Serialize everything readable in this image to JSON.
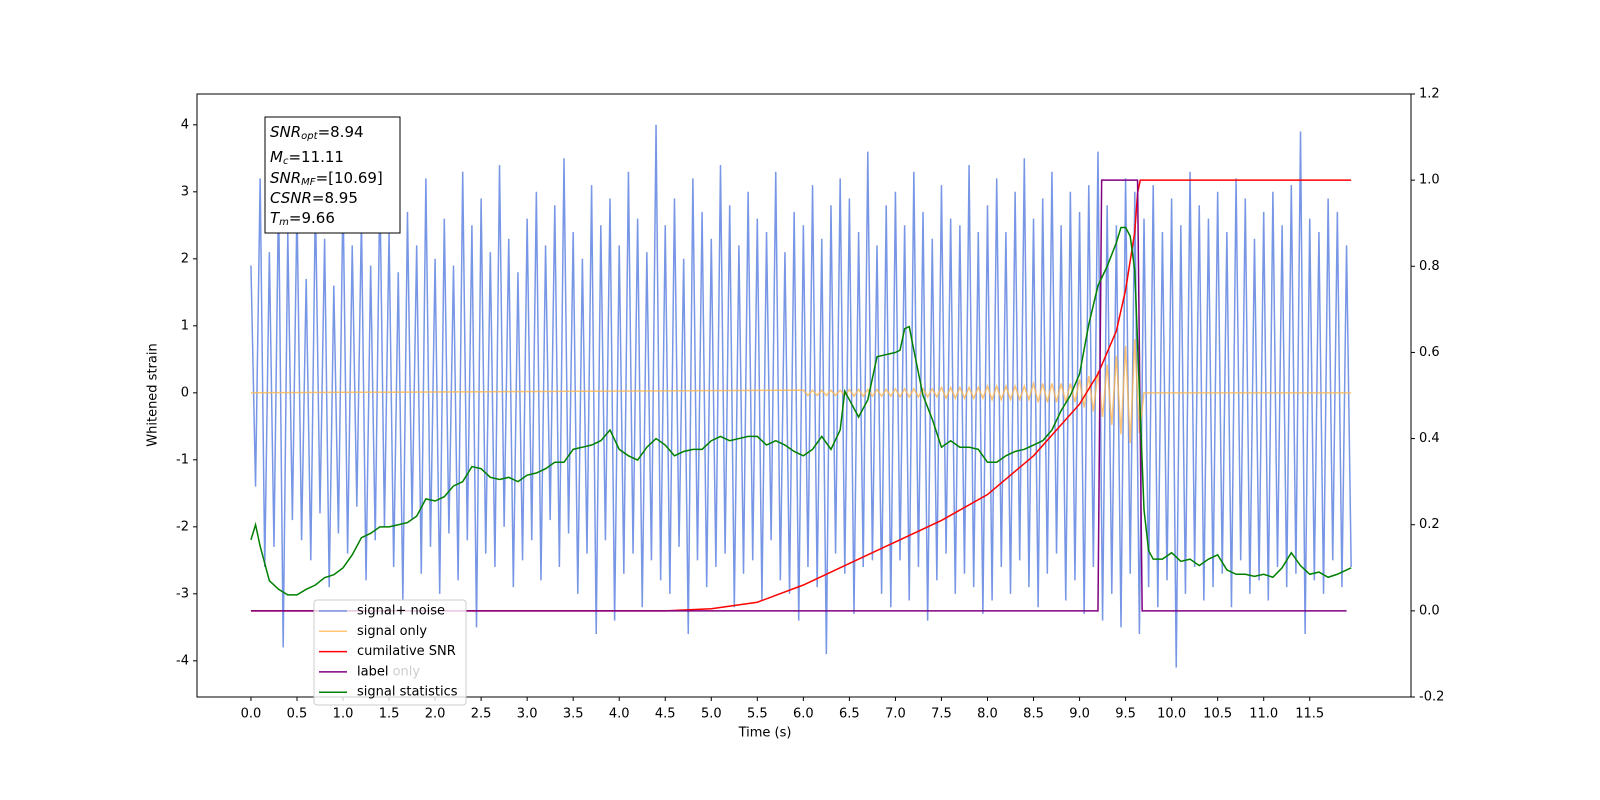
{
  "chart_data": {
    "type": "line",
    "xlabel": "Time (s)",
    "ylabel": "Whitened strain",
    "xlim": [
      -0.586,
      12.6
    ],
    "ylim": [
      -4.54,
      4.46
    ],
    "y2lim": [
      -0.2,
      1.2
    ],
    "xticks": [
      {
        "value": 0,
        "label": "0.0"
      },
      0.5,
      {
        "value": 1,
        "label": "1.0"
      },
      1.5,
      {
        "value": 2,
        "label": "2.0"
      },
      2.5,
      {
        "value": 3,
        "label": "3.0"
      },
      3.5,
      {
        "value": 4,
        "label": "4.0"
      },
      4.5,
      {
        "value": 5,
        "label": "5.0"
      },
      5.5,
      {
        "value": 6,
        "label": "6.0"
      },
      6.5,
      {
        "value": 7,
        "label": "7.0"
      },
      7.5,
      {
        "value": 8,
        "label": "8.0"
      },
      8.5,
      {
        "value": 9,
        "label": "9.0"
      },
      9.5,
      {
        "value": 10,
        "label": "10.0"
      },
      10.5,
      {
        "value": 11,
        "label": "11.0"
      },
      11.5
    ],
    "yticks": [
      -4,
      -3,
      -2,
      -1,
      0,
      1,
      2,
      3,
      4
    ],
    "y2ticks": [
      -0.2,
      {
        "value": 0,
        "label": "0.0"
      },
      0.2,
      0.4,
      0.6,
      0.8,
      {
        "value": 1,
        "label": "1.0"
      },
      1.2
    ],
    "annotations": [
      {
        "text": "SNR",
        "sub": "opt",
        "value": "=8.94"
      },
      {
        "text": "M",
        "sub": "c",
        "value": "=11.11"
      },
      {
        "text": "SNR",
        "sub": "MF",
        "value": "=[10.69]"
      },
      {
        "text": "CSNR",
        "value": "=8.95"
      },
      {
        "text": "T",
        "sub": "m",
        "value": "=9.66"
      }
    ],
    "overlapped_legend_entry": "label only",
    "series": [
      {
        "name": "signal+ noise",
        "color": "#7896e6",
        "axis": "y",
        "x": [
          0,
          0.05,
          0.1,
          0.15,
          0.2,
          0.25,
          0.3,
          0.35,
          0.4,
          0.45,
          0.5,
          0.55,
          0.6,
          0.65,
          0.7,
          0.75,
          0.8,
          0.85,
          0.9,
          0.95,
          1,
          1.05,
          1.1,
          1.15,
          1.2,
          1.25,
          1.3,
          1.35,
          1.4,
          1.45,
          1.5,
          1.55,
          1.6,
          1.65,
          1.7,
          1.75,
          1.8,
          1.85,
          1.9,
          1.95,
          2,
          2.05,
          2.1,
          2.15,
          2.2,
          2.25,
          2.3,
          2.35,
          2.4,
          2.45,
          2.5,
          2.55,
          2.6,
          2.65,
          2.7,
          2.75,
          2.8,
          2.85,
          2.9,
          2.95,
          3,
          3.05,
          3.1,
          3.15,
          3.2,
          3.25,
          3.3,
          3.35,
          3.4,
          3.45,
          3.5,
          3.55,
          3.6,
          3.65,
          3.7,
          3.75,
          3.8,
          3.85,
          3.9,
          3.95,
          4,
          4.05,
          4.1,
          4.15,
          4.2,
          4.25,
          4.3,
          4.35,
          4.4,
          4.45,
          4.5,
          4.55,
          4.6,
          4.65,
          4.7,
          4.75,
          4.8,
          4.85,
          4.9,
          4.95,
          5,
          5.05,
          5.1,
          5.15,
          5.2,
          5.25,
          5.3,
          5.35,
          5.4,
          5.45,
          5.5,
          5.55,
          5.6,
          5.65,
          5.7,
          5.75,
          5.8,
          5.85,
          5.9,
          5.95,
          6,
          6.05,
          6.1,
          6.15,
          6.2,
          6.25,
          6.3,
          6.35,
          6.4,
          6.45,
          6.5,
          6.55,
          6.6,
          6.65,
          6.7,
          6.75,
          6.8,
          6.85,
          6.9,
          6.95,
          7,
          7.05,
          7.1,
          7.15,
          7.2,
          7.25,
          7.3,
          7.35,
          7.4,
          7.45,
          7.5,
          7.55,
          7.6,
          7.65,
          7.7,
          7.75,
          7.8,
          7.85,
          7.9,
          7.95,
          8,
          8.05,
          8.1,
          8.15,
          8.2,
          8.25,
          8.3,
          8.35,
          8.4,
          8.45,
          8.5,
          8.55,
          8.6,
          8.65,
          8.7,
          8.75,
          8.8,
          8.85,
          8.9,
          8.95,
          9,
          9.05,
          9.1,
          9.15,
          9.2,
          9.25,
          9.3,
          9.35,
          9.4,
          9.45,
          9.5,
          9.55,
          9.6,
          9.65,
          9.7,
          9.75,
          9.8,
          9.85,
          9.9,
          9.95,
          10,
          10.05,
          10.1,
          10.15,
          10.2,
          10.25,
          10.3,
          10.35,
          10.4,
          10.45,
          10.5,
          10.55,
          10.6,
          10.65,
          10.7,
          10.75,
          10.8,
          10.85,
          10.9,
          10.95,
          11,
          11.05,
          11.1,
          11.15,
          11.2,
          11.25,
          11.3,
          11.35,
          11.4,
          11.45,
          11.5,
          11.55,
          11.6,
          11.65,
          11.7,
          11.75,
          11.8,
          11.85,
          11.9,
          11.95
        ],
        "values": [
          1.9,
          -1.4,
          3.2,
          -2.6,
          2.1,
          -2.3,
          3.0,
          -3.8,
          2.4,
          -1.9,
          2.8,
          -2.2,
          1.7,
          -2.5,
          2.9,
          -1.8,
          2.3,
          -2.9,
          1.6,
          -2.1,
          3.0,
          -2.4,
          2.2,
          -1.7,
          2.6,
          -2.8,
          1.9,
          -2.2,
          3.1,
          -2.0,
          2.4,
          -2.6,
          1.8,
          -3.1,
          2.7,
          -1.9,
          2.2,
          -2.7,
          3.2,
          -2.3,
          2.0,
          -3.0,
          2.6,
          -2.1,
          1.9,
          -2.8,
          3.3,
          -2.2,
          2.5,
          -3.5,
          2.9,
          -2.4,
          2.1,
          -2.6,
          3.4,
          -2.0,
          2.3,
          -2.9,
          1.8,
          -2.5,
          2.6,
          -2.2,
          3.0,
          -2.8,
          2.2,
          -1.9,
          2.8,
          -2.6,
          3.5,
          -2.1,
          2.4,
          -3.0,
          2.0,
          -2.4,
          3.1,
          -3.6,
          2.5,
          -2.2,
          2.9,
          -3.4,
          2.2,
          -2.7,
          3.3,
          -2.4,
          2.6,
          -3.2,
          2.1,
          -2.5,
          4.0,
          -2.8,
          2.5,
          -3.0,
          2.9,
          -2.3,
          2.0,
          -3.6,
          3.2,
          -2.5,
          2.7,
          -2.9,
          2.3,
          -2.6,
          3.4,
          -2.4,
          2.8,
          -3.2,
          2.2,
          -2.7,
          3.0,
          -2.5,
          2.6,
          -3.1,
          2.4,
          -2.2,
          3.3,
          -2.8,
          2.1,
          -3.0,
          2.7,
          -3.4,
          2.5,
          -2.6,
          3.1,
          -2.9,
          2.3,
          -3.9,
          2.8,
          -2.4,
          3.2,
          -2.7,
          2.9,
          -3.3,
          2.4,
          -2.6,
          3.6,
          -2.5,
          2.2,
          -3.0,
          2.8,
          -3.2,
          3.0,
          -2.5,
          2.5,
          -3.1,
          3.3,
          -2.6,
          2.7,
          -3.4,
          2.3,
          -2.8,
          3.1,
          -2.4,
          2.6,
          -3.0,
          2.5,
          -2.7,
          3.4,
          -2.9,
          2.4,
          -3.3,
          2.8,
          -3.1,
          3.2,
          -2.6,
          2.4,
          -3.0,
          3.0,
          -2.5,
          3.5,
          -2.9,
          2.6,
          -3.2,
          2.9,
          -2.7,
          3.3,
          -2.4,
          2.5,
          -3.1,
          3.0,
          -2.8,
          2.7,
          -3.3,
          3.1,
          -2.6,
          3.6,
          -3.4,
          2.8,
          -3.0,
          2.5,
          -3.5,
          3.2,
          -2.7,
          3.0,
          -3.6,
          2.6,
          -2.9,
          3.1,
          -3.2,
          2.4,
          -2.8,
          2.9,
          -4.1,
          2.5,
          -3.0,
          3.3,
          -2.6,
          2.8,
          -3.1,
          2.6,
          -2.9,
          3.0,
          -2.7,
          2.4,
          -3.2,
          3.2,
          -2.5,
          2.9,
          -3.0,
          2.3,
          -2.8,
          2.7,
          -3.1,
          3.0,
          -2.6,
          2.5,
          -2.9,
          3.1,
          -2.7,
          3.9,
          -3.6,
          2.6,
          -2.8,
          2.4,
          -3.0,
          2.9,
          -2.5,
          2.7,
          -2.9,
          2.2,
          -2.6
        ]
      },
      {
        "name": "signal only",
        "color": "#ffb347",
        "axis": "y",
        "x": [
          0,
          6,
          6.05,
          6.1,
          6.15,
          6.2,
          6.25,
          6.3,
          6.35,
          6.4,
          6.45,
          6.5,
          6.55,
          6.6,
          6.65,
          6.7,
          6.75,
          6.8,
          6.85,
          6.9,
          6.95,
          7,
          7.05,
          7.1,
          7.15,
          7.2,
          7.25,
          7.3,
          7.35,
          7.4,
          7.45,
          7.5,
          7.55,
          7.6,
          7.65,
          7.7,
          7.75,
          7.8,
          7.85,
          7.9,
          7.95,
          8,
          8.05,
          8.1,
          8.15,
          8.2,
          8.25,
          8.3,
          8.35,
          8.4,
          8.45,
          8.5,
          8.55,
          8.6,
          8.65,
          8.7,
          8.75,
          8.8,
          8.85,
          8.9,
          8.95,
          9,
          9.05,
          9.1,
          9.15,
          9.2,
          9.25,
          9.3,
          9.35,
          9.4,
          9.45,
          9.5,
          9.55,
          9.6,
          9.65,
          9.7,
          11.95
        ],
        "values": [
          0,
          0.04,
          -0.04,
          0.04,
          -0.04,
          0.04,
          -0.04,
          0.04,
          -0.04,
          0.04,
          -0.04,
          0.05,
          -0.05,
          0.05,
          -0.05,
          0.05,
          -0.05,
          0.05,
          -0.05,
          0.05,
          -0.05,
          0.06,
          -0.06,
          0.06,
          -0.06,
          0.06,
          -0.06,
          0.06,
          -0.06,
          0.06,
          -0.06,
          0.08,
          -0.08,
          0.08,
          -0.08,
          0.08,
          -0.08,
          0.08,
          -0.08,
          0.08,
          -0.08,
          0.1,
          -0.1,
          0.1,
          -0.1,
          0.1,
          -0.1,
          0.1,
          -0.1,
          0.1,
          -0.1,
          0.14,
          -0.14,
          0.14,
          -0.14,
          0.14,
          -0.14,
          0.14,
          -0.14,
          0.14,
          -0.14,
          0.2,
          -0.22,
          0.25,
          -0.28,
          0.32,
          -0.36,
          0.42,
          -0.48,
          0.55,
          -0.62,
          0.7,
          -0.75,
          0.8,
          -0.6,
          0,
          0
        ]
      },
      {
        "name": "cumilative SNR",
        "color": "#ff0000",
        "axis": "y2",
        "x": [
          0,
          4.5,
          5,
          5.5,
          6,
          6.5,
          7,
          7.5,
          8,
          8.5,
          9,
          9.2,
          9.4,
          9.5,
          9.6,
          9.63,
          9.66,
          11.95
        ],
        "values": [
          0,
          0,
          0.005,
          0.02,
          0.06,
          0.11,
          0.16,
          0.21,
          0.27,
          0.36,
          0.48,
          0.55,
          0.65,
          0.745,
          0.88,
          0.97,
          1,
          1
        ]
      },
      {
        "name": "label",
        "color": "#800080",
        "axis": "y2",
        "x": [
          0,
          9.2,
          9.24,
          9.63,
          9.68,
          11.9
        ],
        "values": [
          0,
          0,
          1,
          1,
          0,
          0
        ]
      },
      {
        "name": "signal statistics",
        "color": "#008000",
        "axis": "y2",
        "x": [
          0,
          0.05,
          0.1,
          0.2,
          0.3,
          0.4,
          0.5,
          0.6,
          0.7,
          0.8,
          0.9,
          1,
          1.1,
          1.2,
          1.3,
          1.4,
          1.5,
          1.6,
          1.7,
          1.8,
          1.9,
          2,
          2.1,
          2.2,
          2.3,
          2.4,
          2.5,
          2.6,
          2.7,
          2.8,
          2.9,
          3,
          3.1,
          3.2,
          3.3,
          3.4,
          3.5,
          3.6,
          3.7,
          3.8,
          3.9,
          4,
          4.1,
          4.2,
          4.3,
          4.4,
          4.5,
          4.6,
          4.7,
          4.8,
          4.9,
          5,
          5.1,
          5.2,
          5.3,
          5.4,
          5.5,
          5.6,
          5.7,
          5.8,
          5.9,
          6,
          6.1,
          6.2,
          6.3,
          6.4,
          6.45,
          6.5,
          6.6,
          6.7,
          6.8,
          6.9,
          7,
          7.05,
          7.1,
          7.15,
          7.2,
          7.3,
          7.4,
          7.5,
          7.6,
          7.7,
          7.8,
          7.9,
          8,
          8.1,
          8.2,
          8.3,
          8.4,
          8.5,
          8.6,
          8.7,
          8.8,
          8.9,
          9,
          9.1,
          9.2,
          9.3,
          9.4,
          9.45,
          9.5,
          9.55,
          9.6,
          9.65,
          9.7,
          9.75,
          9.8,
          9.9,
          10,
          10.1,
          10.2,
          10.3,
          10.4,
          10.5,
          10.6,
          10.7,
          10.8,
          10.9,
          11,
          11.1,
          11.2,
          11.3,
          11.4,
          11.5,
          11.6,
          11.7,
          11.8,
          11.95
        ],
        "values": [
          0.165,
          0.2,
          0.15,
          0.07,
          0.05,
          0.037,
          0.037,
          0.05,
          0.06,
          0.077,
          0.084,
          0.1,
          0.13,
          0.17,
          0.18,
          0.195,
          0.195,
          0.2,
          0.205,
          0.22,
          0.26,
          0.255,
          0.265,
          0.29,
          0.3,
          0.335,
          0.33,
          0.31,
          0.305,
          0.31,
          0.3,
          0.315,
          0.32,
          0.33,
          0.345,
          0.345,
          0.375,
          0.38,
          0.385,
          0.395,
          0.42,
          0.375,
          0.36,
          0.35,
          0.38,
          0.4,
          0.385,
          0.36,
          0.37,
          0.375,
          0.375,
          0.395,
          0.405,
          0.395,
          0.4,
          0.405,
          0.405,
          0.385,
          0.395,
          0.385,
          0.37,
          0.36,
          0.375,
          0.405,
          0.375,
          0.42,
          0.51,
          0.49,
          0.45,
          0.49,
          0.59,
          0.595,
          0.6,
          0.605,
          0.655,
          0.66,
          0.605,
          0.5,
          0.445,
          0.38,
          0.395,
          0.38,
          0.38,
          0.375,
          0.345,
          0.345,
          0.36,
          0.37,
          0.375,
          0.385,
          0.395,
          0.42,
          0.465,
          0.5,
          0.55,
          0.665,
          0.755,
          0.8,
          0.855,
          0.89,
          0.89,
          0.87,
          0.79,
          0.51,
          0.235,
          0.14,
          0.12,
          0.12,
          0.135,
          0.115,
          0.12,
          0.105,
          0.12,
          0.13,
          0.095,
          0.085,
          0.085,
          0.08,
          0.085,
          0.078,
          0.1,
          0.135,
          0.105,
          0.085,
          0.09,
          0.078,
          0.085,
          0.1
        ]
      }
    ]
  }
}
